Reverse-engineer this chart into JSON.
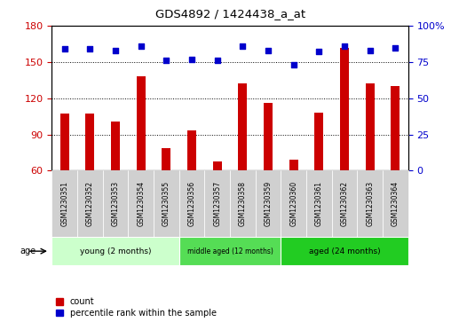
{
  "title": "GDS4892 / 1424438_a_at",
  "samples": [
    "GSM1230351",
    "GSM1230352",
    "GSM1230353",
    "GSM1230354",
    "GSM1230355",
    "GSM1230356",
    "GSM1230357",
    "GSM1230358",
    "GSM1230359",
    "GSM1230360",
    "GSM1230361",
    "GSM1230362",
    "GSM1230363",
    "GSM1230364"
  ],
  "counts": [
    107,
    107,
    101,
    138,
    79,
    93,
    68,
    132,
    116,
    69,
    108,
    162,
    132,
    130
  ],
  "percentiles": [
    84,
    84,
    83,
    86,
    76,
    77,
    76,
    86,
    83,
    73,
    82,
    86,
    83,
    85
  ],
  "ylim_left": [
    60,
    180
  ],
  "ylim_right": [
    0,
    100
  ],
  "yticks_left": [
    60,
    90,
    120,
    150,
    180
  ],
  "yticks_right": [
    0,
    25,
    50,
    75,
    100
  ],
  "bar_color": "#cc0000",
  "scatter_color": "#0000cc",
  "groups": [
    {
      "label": "young (2 months)",
      "start": 0,
      "end": 5,
      "color": "#ccffcc"
    },
    {
      "label": "middle aged (12 months)",
      "start": 5,
      "end": 9,
      "color": "#55dd55"
    },
    {
      "label": "aged (24 months)",
      "start": 9,
      "end": 14,
      "color": "#33cc33"
    }
  ],
  "age_label": "age",
  "legend_count_label": "count",
  "legend_percentile_label": "percentile rank within the sample",
  "fig_bg_color": "#ffffff",
  "plot_bg_color": "#ffffff",
  "xtick_box_color": "#cccccc",
  "dotted_line_values": [
    90,
    120,
    150
  ],
  "bar_width": 0.35
}
